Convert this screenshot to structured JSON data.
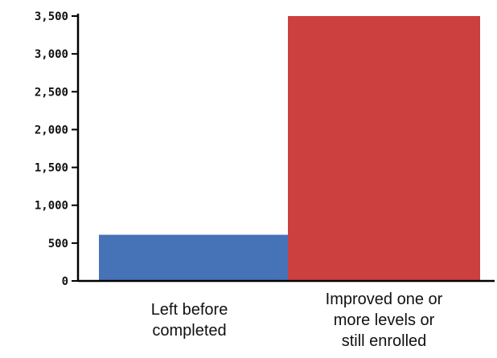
{
  "chart_data": {
    "type": "bar",
    "categories": [
      [
        "Left before",
        "completed"
      ],
      [
        "Improved one or",
        "more levels or",
        "still enrolled"
      ]
    ],
    "values": [
      610,
      3500
    ],
    "colors": [
      "#4672b8",
      "#cc4040"
    ],
    "ylim": [
      0,
      3500
    ],
    "yticks": [
      0,
      500,
      1000,
      1500,
      2000,
      2500,
      3000,
      3500
    ],
    "ytick_labels": [
      "0",
      "500",
      "1,000",
      "1,500",
      "2,000",
      "2,500",
      "3,000",
      "3,500"
    ],
    "title": "",
    "xlabel": "",
    "ylabel": "",
    "grid": false,
    "legend": false
  }
}
